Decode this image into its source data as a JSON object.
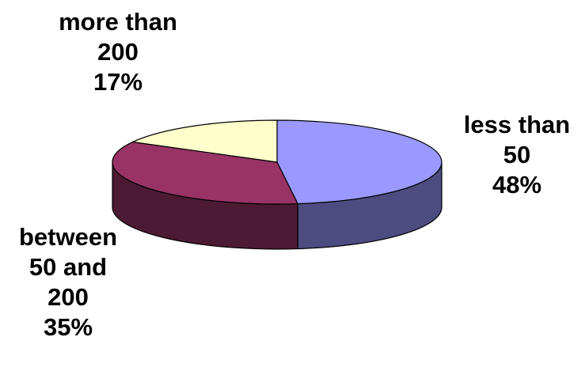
{
  "chart_data": {
    "type": "pie",
    "style": "3d",
    "legend": "none",
    "slices": [
      {
        "label_lines": [
          "less than",
          "50"
        ],
        "percent_text": "48%",
        "value": 48,
        "color": "#9999ff",
        "side_color": "#4c4c80"
      },
      {
        "label_lines": [
          "between",
          "50 and",
          "200"
        ],
        "percent_text": "35%",
        "value": 35,
        "color": "#993366",
        "side_color": "#4c1a33"
      },
      {
        "label_lines": [
          "more than",
          "200"
        ],
        "percent_text": "17%",
        "value": 17,
        "color": "#ffffcc",
        "side_color": "#808066"
      }
    ]
  }
}
